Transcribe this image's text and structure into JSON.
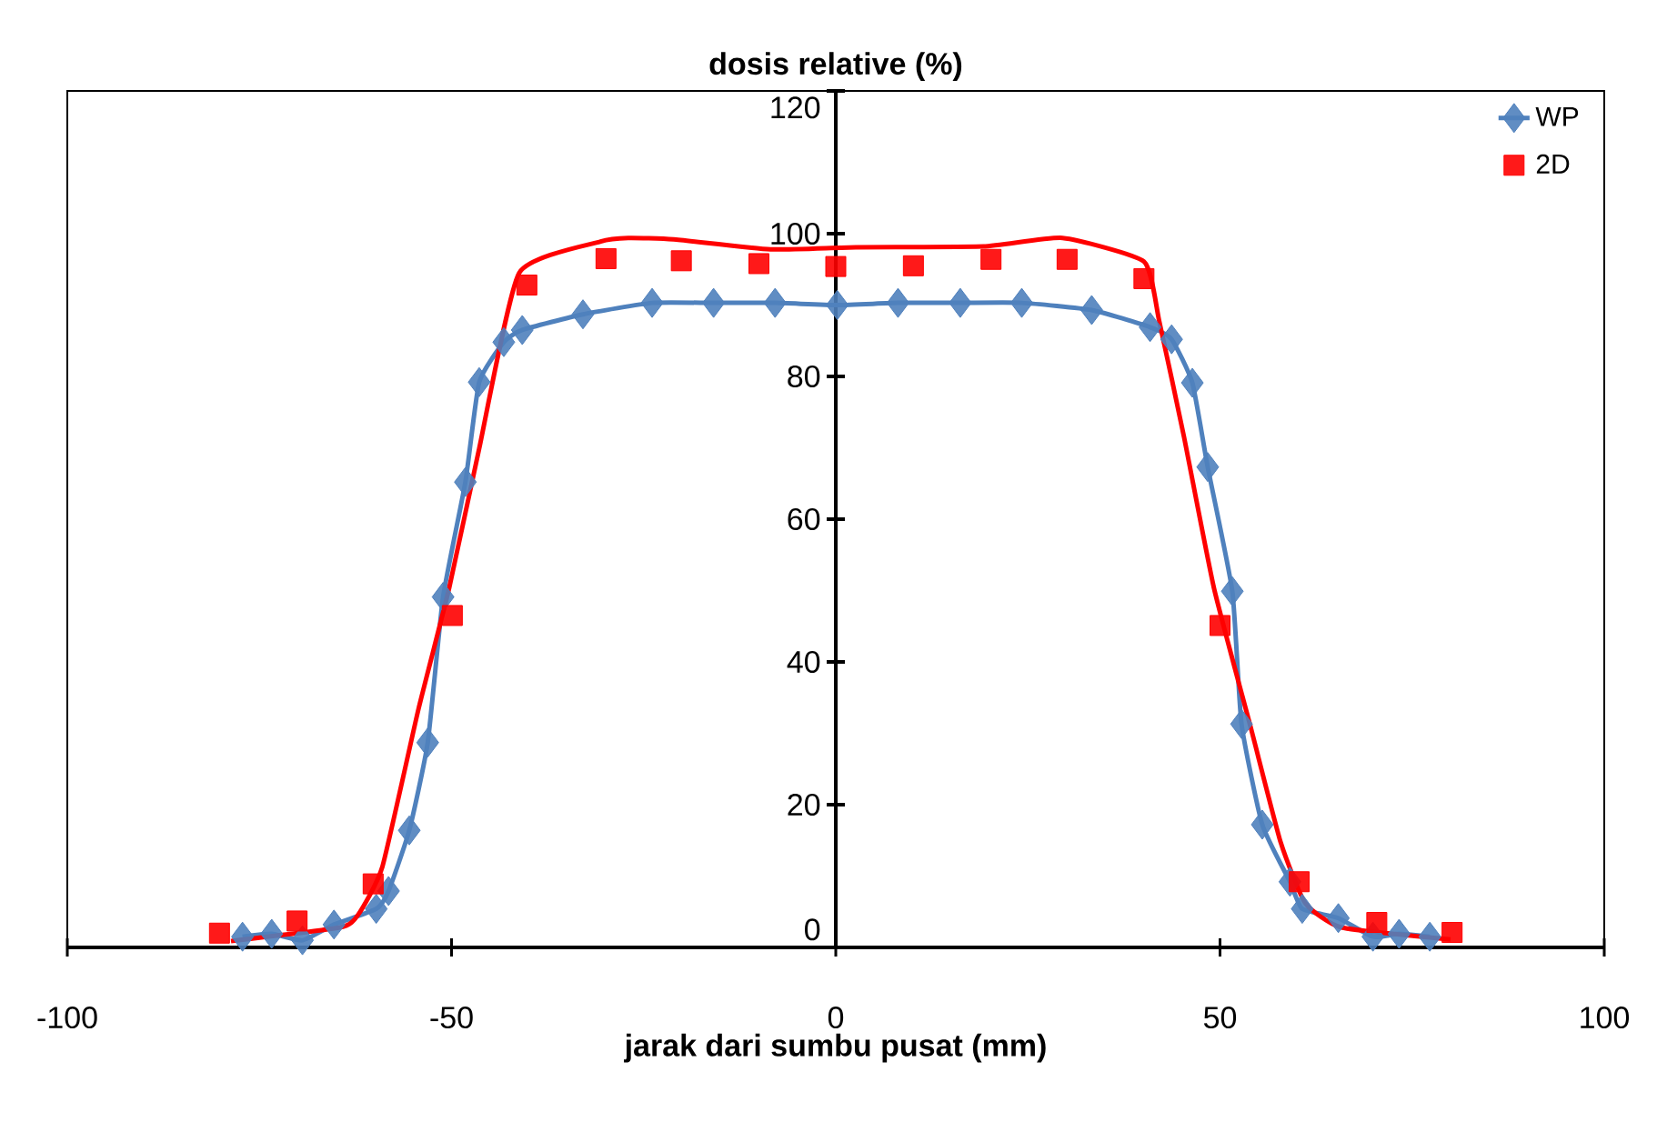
{
  "chart_data": {
    "type": "scatter",
    "title": "dosis relative (%)",
    "xlabel": "jarak dari sumbu pusat (mm)",
    "xlim": [
      -100,
      100
    ],
    "xticks": [
      -100,
      -50,
      0,
      50,
      100
    ],
    "ylim": [
      0,
      120
    ],
    "yticks": [
      0,
      20,
      40,
      60,
      80,
      100,
      120
    ],
    "legend": "top right",
    "grid": false,
    "series": [
      {
        "name": "WP",
        "type": "line",
        "marker": "diamond",
        "color": "#4f81bd",
        "x": [
          -77.2,
          -73.4,
          -69.4,
          -65.3,
          -59.8,
          -58.2,
          -55.5,
          -53.1,
          -51.1,
          -48.2,
          -46.4,
          -43.2,
          -40.8,
          -32.9,
          -23.9,
          -15.9,
          -7.9,
          0.2,
          8.1,
          16.2,
          24.2,
          33.3,
          40.9,
          43.7,
          46.4,
          48.4,
          51.6,
          52.8,
          55.5,
          59.1,
          60.7,
          65.4,
          69.9,
          73.3,
          77.3
        ],
        "values": [
          1.5,
          1.9,
          1.0,
          3.2,
          5.4,
          7.9,
          16.4,
          28.7,
          49.1,
          65.2,
          79.2,
          84.8,
          86.5,
          88.7,
          90.3,
          90.3,
          90.3,
          90.0,
          90.3,
          90.3,
          90.3,
          89.3,
          86.9,
          85.2,
          79.1,
          67.3,
          49.9,
          31.3,
          17.2,
          9.2,
          5.4,
          4.1,
          1.5,
          1.9,
          1.5
        ]
      },
      {
        "name": "2D",
        "marker": "square",
        "color": "#ff0000",
        "x": [
          -80.2,
          -70.1,
          -60.2,
          -49.9,
          -40.2,
          -29.9,
          -20.1,
          -10.0,
          0,
          10.1,
          20.2,
          30.1,
          40.1,
          50.0,
          60.3,
          70.4,
          80.2
        ],
        "values": [
          2.0,
          3.7,
          8.9,
          46.5,
          92.8,
          96.5,
          96.2,
          95.8,
          95.4,
          95.5,
          96.4,
          96.4,
          93.7,
          45.1,
          9.2,
          3.5,
          2.1
        ]
      },
      {
        "type": "line",
        "marker": "none",
        "color": "#ff0000",
        "x": [
          -78.7,
          -64.5,
          -62.2,
          -59.0,
          -54.3,
          -50.3,
          -46.4,
          -41.2,
          -30.6,
          -27.0,
          -21.1,
          -8.5,
          2.6,
          19.2,
          29.5,
          40.1,
          42.1,
          45.3,
          49.2,
          54.0,
          57.9,
          61.1,
          65.8,
          80.0
        ],
        "values": [
          0.9,
          2.8,
          4.5,
          11.3,
          33.4,
          50.4,
          69.9,
          94.5,
          98.9,
          99.4,
          99.2,
          97.8,
          98.1,
          98.2,
          99.4,
          96.1,
          87.7,
          71.6,
          50.4,
          30.8,
          14.7,
          6.2,
          2.8,
          1.1
        ]
      }
    ]
  }
}
